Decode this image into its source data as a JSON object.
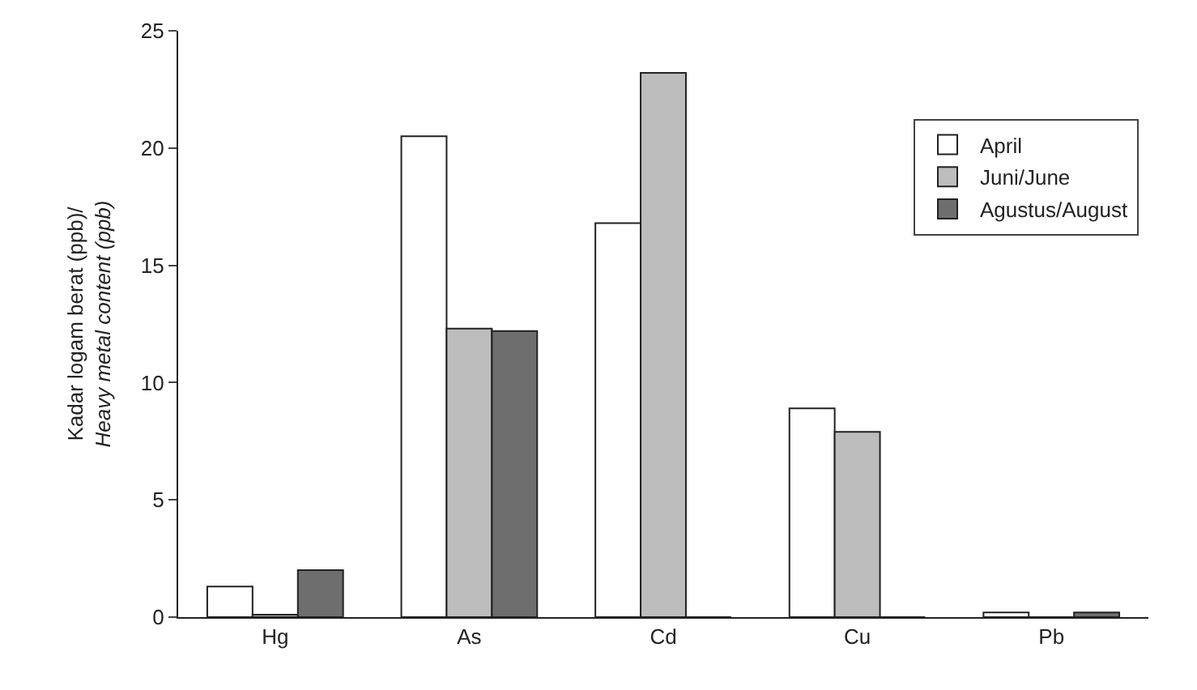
{
  "chart_data": {
    "type": "bar",
    "ylabel": "Kadar logam berat (ppb)/\nHeavy metal content (ppb)",
    "categories": [
      "Hg",
      "As",
      "Cd",
      "Cu",
      "Pb"
    ],
    "series": [
      {
        "name": "April",
        "color": "#ffffff",
        "values": [
          1.3,
          20.5,
          16.8,
          8.9,
          0.2
        ]
      },
      {
        "name": "Juni/June",
        "color": "#bdbdbd",
        "values": [
          0.1,
          12.3,
          23.2,
          7.9,
          0
        ]
      },
      {
        "name": "Agustus/August",
        "color": "#6e6e6e",
        "values": [
          2.0,
          12.2,
          0,
          0,
          0.2
        ]
      }
    ],
    "ylim": [
      0,
      25
    ],
    "yticks": [
      0,
      5,
      10,
      15,
      20,
      25
    ],
    "legend": "top right"
  }
}
